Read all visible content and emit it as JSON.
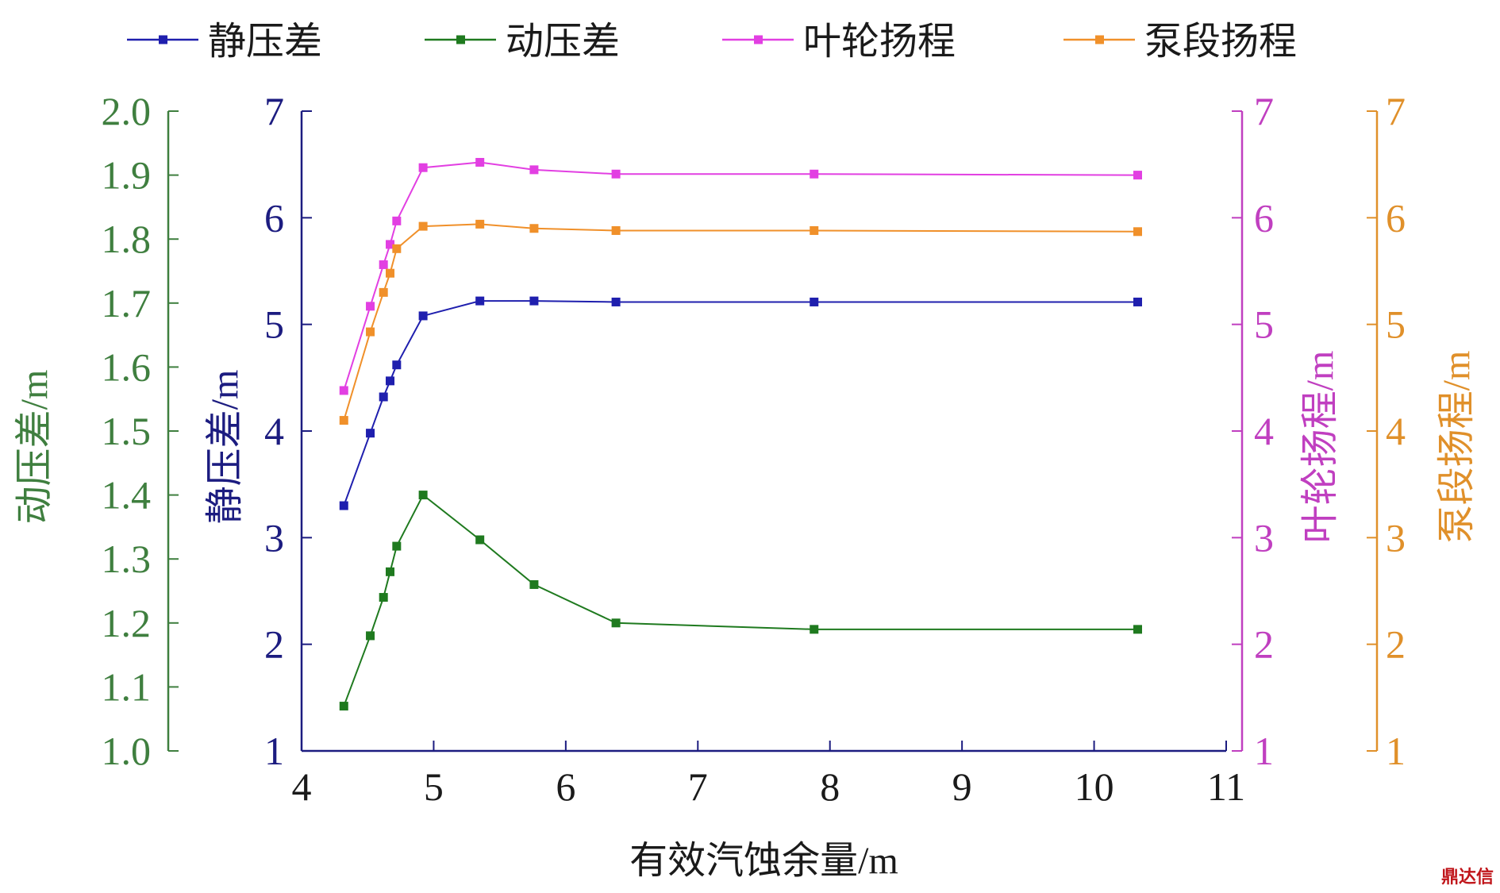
{
  "chart_data": {
    "type": "line",
    "xlabel": "有效汽蚀余量/m",
    "xlim": [
      4,
      11
    ],
    "xticks": [
      "4",
      "5",
      "6",
      "7",
      "8",
      "9",
      "10",
      "11"
    ],
    "x": [
      4.32,
      4.52,
      4.62,
      4.67,
      4.72,
      4.92,
      5.35,
      5.76,
      6.38,
      7.88,
      10.33
    ],
    "legend_position": "top",
    "grid": false,
    "axes": [
      {
        "id": "static",
        "label": "静压差/m",
        "lim": [
          1,
          7
        ],
        "ticks": [
          "1",
          "2",
          "3",
          "4",
          "5",
          "6",
          "7"
        ],
        "color": "#1c1c80"
      },
      {
        "id": "dynamic",
        "label": "动压差/m",
        "lim": [
          1.0,
          2.0
        ],
        "ticks": [
          "1.0",
          "1.1",
          "1.2",
          "1.3",
          "1.4",
          "1.5",
          "1.6",
          "1.7",
          "1.8",
          "1.9",
          "2.0"
        ],
        "color": "#3f7f3f"
      },
      {
        "id": "impeller",
        "label": "叶轮扬程/m",
        "lim": [
          1,
          7
        ],
        "ticks": [
          "1",
          "2",
          "3",
          "4",
          "5",
          "6",
          "7"
        ],
        "color": "#c03fc0"
      },
      {
        "id": "pump",
        "label": "泵段扬程/m",
        "lim": [
          1,
          7
        ],
        "ticks": [
          "1",
          "2",
          "3",
          "4",
          "5",
          "6",
          "7"
        ],
        "color": "#e0902a"
      }
    ],
    "series": [
      {
        "name": "静压差",
        "axis": "static",
        "color": "#1f1fae",
        "values": [
          3.3,
          3.98,
          4.32,
          4.47,
          4.62,
          5.08,
          5.22,
          5.22,
          5.21,
          5.21,
          5.21
        ]
      },
      {
        "name": "动压差",
        "axis": "dynamic",
        "color": "#1f7a1f",
        "values": [
          1.07,
          1.18,
          1.24,
          1.28,
          1.32,
          1.4,
          1.33,
          1.26,
          1.2,
          1.19,
          1.19
        ]
      },
      {
        "name": "叶轮扬程",
        "axis": "impeller",
        "color": "#e23fe2",
        "values": [
          4.38,
          5.17,
          5.56,
          5.75,
          5.97,
          6.47,
          6.52,
          6.45,
          6.41,
          6.41,
          6.4
        ]
      },
      {
        "name": "泵段扬程",
        "axis": "pump",
        "color": "#f0902a",
        "values": [
          4.1,
          4.93,
          5.3,
          5.48,
          5.71,
          5.92,
          5.94,
          5.9,
          5.88,
          5.88,
          5.87
        ]
      }
    ]
  },
  "watermark": "鼎达信"
}
